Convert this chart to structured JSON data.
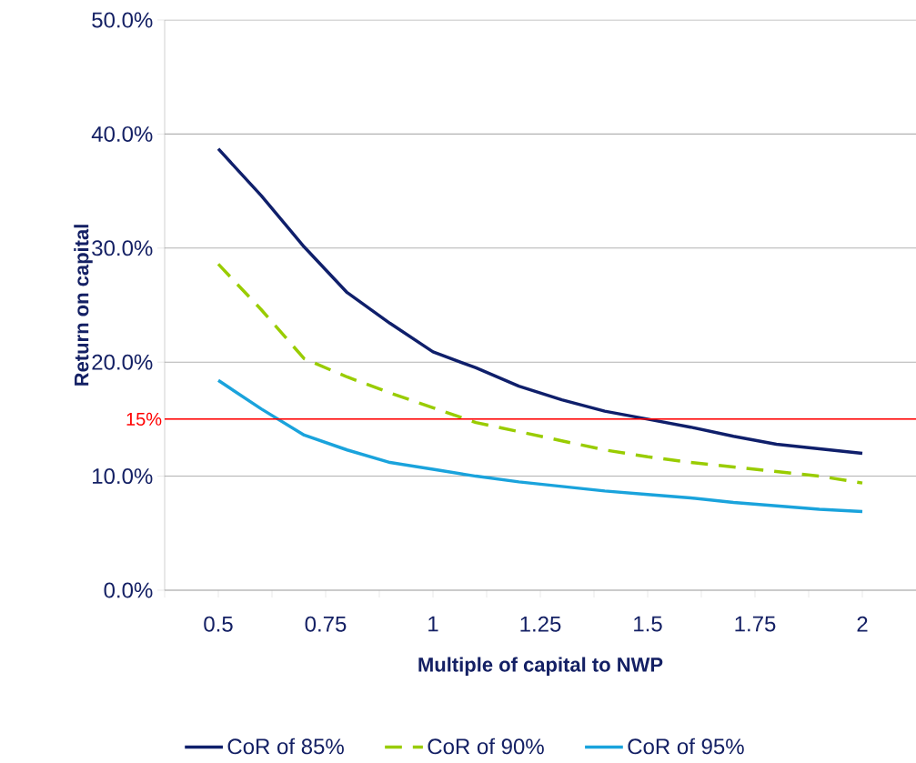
{
  "chart_data": {
    "type": "line",
    "xlabel": "Multiple of capital to NWP",
    "ylabel": "Return on capital",
    "x": [
      0.5,
      0.6,
      0.7,
      0.8,
      0.9,
      1.0,
      1.1,
      1.2,
      1.3,
      1.4,
      1.5,
      1.6,
      1.7,
      1.8,
      1.9,
      2.0
    ],
    "series": [
      {
        "name": "CoR of 85%",
        "color": "#0f1f6b",
        "line_style": "solid",
        "values": [
          38.7,
          34.6,
          30.1,
          26.1,
          23.4,
          20.9,
          19.5,
          17.9,
          16.7,
          15.7,
          15.0,
          14.3,
          13.5,
          12.8,
          12.4,
          12.0
        ]
      },
      {
        "name": "CoR of 90%",
        "color": "#99cc00",
        "line_style": "dashed",
        "values": [
          28.6,
          24.6,
          20.3,
          18.7,
          17.3,
          16.0,
          14.7,
          13.9,
          13.1,
          12.3,
          11.7,
          11.2,
          10.8,
          10.4,
          10.0,
          9.4
        ]
      },
      {
        "name": "CoR of 95%",
        "color": "#1aa3dc",
        "line_style": "solid",
        "values": [
          18.4,
          15.9,
          13.6,
          12.3,
          11.2,
          10.6,
          10.0,
          9.5,
          9.1,
          8.7,
          8.4,
          8.1,
          7.7,
          7.4,
          7.1,
          6.9
        ]
      }
    ],
    "xlim": [
      0.375,
      2.125
    ],
    "xticks": [
      {
        "value": 0.375,
        "label": null
      },
      0.5,
      {
        "value": 0.625,
        "label": null
      },
      0.75,
      {
        "value": 0.875,
        "label": null
      },
      1,
      {
        "value": 1.125,
        "label": null
      },
      1.25,
      {
        "value": 1.375,
        "label": null
      },
      1.5,
      {
        "value": 1.625,
        "label": null
      },
      1.75,
      {
        "value": 1.875,
        "label": null
      },
      2
    ],
    "ylim": [
      0,
      50
    ],
    "yticks": [
      {
        "value": 0,
        "label": "0.0%"
      },
      {
        "value": 10,
        "label": "10.0%"
      },
      {
        "value": 20,
        "label": "20.0%"
      },
      {
        "value": 30,
        "label": "30.0%"
      },
      {
        "value": 40,
        "label": "40.0%"
      },
      {
        "value": 50,
        "label": "50.0%"
      }
    ],
    "ref_lines": [
      {
        "axis": "y",
        "value": 15,
        "label": "15%",
        "color": "#ff0000"
      }
    ],
    "grid": "y",
    "legend": "bottom"
  }
}
